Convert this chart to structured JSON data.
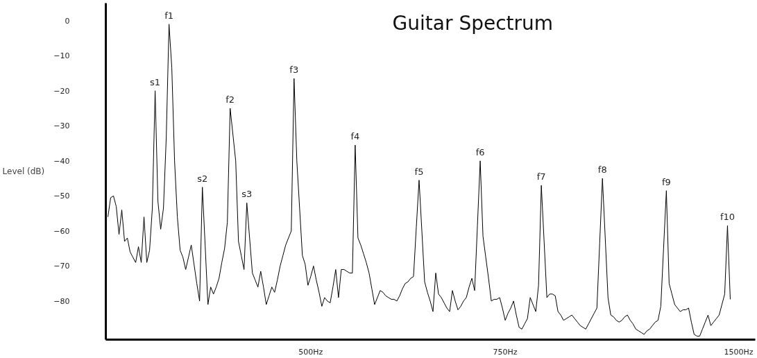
{
  "chart_data": {
    "type": "line",
    "title": "Guitar Spectrum",
    "ylabel": "Level (dB)",
    "categories": [
      null,
      null,
      null,
      null,
      null,
      null,
      null,
      null,
      null,
      null,
      null,
      null,
      null,
      null,
      null,
      null,
      null,
      null,
      null,
      null,
      null,
      null,
      null,
      null,
      null,
      null,
      null,
      null,
      null,
      null,
      null,
      null,
      null,
      null,
      null,
      null,
      null,
      null,
      null,
      null,
      null,
      null,
      null,
      null,
      null,
      null,
      null,
      null,
      null,
      null,
      null,
      null,
      null,
      null,
      null,
      null,
      null,
      null,
      null,
      null,
      null,
      null,
      null,
      null,
      null,
      null,
      null,
      null,
      null,
      null,
      null,
      null,
      null,
      "500Hz",
      null,
      null,
      null,
      null,
      null,
      null,
      null,
      null,
      null,
      null,
      null,
      null,
      null,
      null,
      null,
      null,
      null,
      null,
      null,
      null,
      null,
      null,
      null,
      null,
      null,
      null,
      null,
      null,
      null,
      null,
      null,
      null,
      null,
      null,
      null,
      null,
      null,
      null,
      null,
      null,
      null,
      null,
      null,
      null,
      null,
      null,
      null,
      null,
      null,
      null,
      null,
      null,
      null,
      null,
      null,
      null,
      null,
      null,
      null,
      null,
      null,
      null,
      null,
      null,
      null,
      null,
      null,
      null,
      null,
      "750Hz",
      null,
      null,
      null,
      null,
      null,
      null,
      null,
      null,
      null,
      null,
      null,
      null,
      null,
      null,
      null,
      null,
      null,
      null,
      null,
      null,
      null,
      null,
      null,
      null,
      null,
      null,
      null,
      null,
      null,
      null,
      null,
      null,
      null,
      null,
      null,
      null,
      null,
      null,
      null,
      null,
      null,
      null,
      null,
      null,
      null,
      null,
      null,
      null,
      null,
      null,
      null,
      null,
      null,
      null,
      null,
      null,
      null,
      null,
      null,
      null,
      null,
      null,
      null,
      null,
      null,
      null,
      null,
      null,
      null,
      null,
      null,
      null,
      null,
      null,
      null,
      null,
      null,
      null,
      null,
      null,
      null,
      null,
      null,
      "1500Hz"
    ],
    "series": [
      {
        "color": "#000000",
        "values": [
          -56,
          -50.5,
          -50,
          -53,
          -61,
          -54,
          -63,
          -62,
          -66,
          -67.5,
          -69,
          -64.5,
          -69,
          -56,
          -69,
          -65.5,
          -53.5,
          -20,
          -51.5,
          -59.5,
          -53.5,
          -33.5,
          -1,
          -13.4,
          -40,
          -56,
          -65.5,
          -67.5,
          -71,
          -67.5,
          -64,
          -69.5,
          -75,
          -80,
          -47.5,
          -64,
          -81,
          -76,
          -78,
          -76,
          -73.5,
          -69,
          -65,
          -57.5,
          -25,
          -32.5,
          -40,
          -63,
          -67,
          -71,
          -52,
          -62,
          -72,
          -74,
          -76,
          -71.5,
          -76,
          -81,
          -78.5,
          -76,
          -77.5,
          -74,
          -70,
          -67,
          -64,
          -62,
          -60,
          -16.5,
          -40,
          -53.5,
          -67,
          -69.5,
          -75.5,
          -73,
          -70,
          -74,
          -77.5,
          -81.5,
          -79,
          -80,
          -80.5,
          -76,
          -71,
          -79,
          -71,
          -71,
          -71.5,
          -72,
          -72,
          -35.5,
          -62,
          -64,
          -66.5,
          -69,
          -72,
          -76.5,
          -81,
          -79,
          -77,
          -77.5,
          -78.5,
          -79,
          -79.5,
          -79.5,
          -80,
          -78.5,
          -76.5,
          -75,
          -74.5,
          -73.5,
          -73,
          -59,
          -45.5,
          -60,
          -74.5,
          -77.5,
          -80,
          -83,
          -72,
          -78,
          -79,
          -80.5,
          -82,
          -83,
          -77,
          -80,
          -82.5,
          -81.5,
          -80,
          -79,
          -76,
          -73.5,
          -77,
          -58.5,
          -40,
          -61.5,
          -67.5,
          -73.5,
          -80,
          -79.5,
          -79.5,
          -79,
          -82,
          -85.5,
          -83.5,
          -82,
          -80,
          -84,
          -87.5,
          -88,
          -86.5,
          -85,
          -79,
          -81,
          -83,
          -75.5,
          -47,
          -63,
          -79,
          -78,
          -78,
          -78.5,
          -83,
          -84,
          -85.5,
          -85,
          -84.5,
          -84,
          -85,
          -86,
          -87,
          -87.5,
          -88,
          -86.5,
          -85,
          -83.5,
          -82,
          -63.5,
          -45,
          -62,
          -79,
          -84,
          -84.5,
          -85.5,
          -86,
          -85.5,
          -84.5,
          -84,
          -85.5,
          -86.5,
          -88,
          -88.5,
          -89,
          -89.5,
          -88.5,
          -88,
          -87,
          -86,
          -85.5,
          -81.5,
          -65,
          -48.5,
          -75,
          -78,
          -81,
          -82,
          -83,
          -82.5,
          -82.5,
          -82,
          -86,
          -89.5,
          -90,
          -90,
          -88,
          -86,
          -84,
          -87,
          -86,
          -85,
          -84,
          -81,
          -78,
          -58.5,
          -79.5,
          null,
          null,
          null
        ]
      }
    ],
    "annotations": [
      {
        "text": "s1",
        "y": -20
      },
      {
        "text": "f1",
        "y": -1
      },
      {
        "text": "s2",
        "y": -47.5
      },
      {
        "text": "f2",
        "y": -25
      },
      {
        "text": "s3",
        "y": -52
      },
      {
        "text": "f3",
        "y": -16.5
      },
      {
        "text": "f4",
        "y": -35.5
      },
      {
        "text": "f5",
        "y": -45.5
      },
      {
        "text": "f6",
        "y": -40
      },
      {
        "text": "f7",
        "y": -47
      },
      {
        "text": "f8",
        "y": -45
      },
      {
        "text": "f9",
        "y": -48.5
      },
      {
        "text": "f10",
        "y": -58.5
      }
    ],
    "ylim": [
      -91,
      5
    ],
    "yticks": [
      {
        "value": 0,
        "label": "0"
      },
      {
        "value": -10,
        "label": "−10"
      },
      {
        "value": -20,
        "label": "−20"
      },
      {
        "value": -30,
        "label": "−30"
      },
      {
        "value": -40,
        "label": "−40"
      },
      {
        "value": -50,
        "label": "−50"
      },
      {
        "value": -60,
        "label": "−60"
      },
      {
        "value": -70,
        "label": "−70"
      },
      {
        "value": -80,
        "label": "−80"
      }
    ],
    "grid": false,
    "marker": "none",
    "line_style": "solid"
  }
}
